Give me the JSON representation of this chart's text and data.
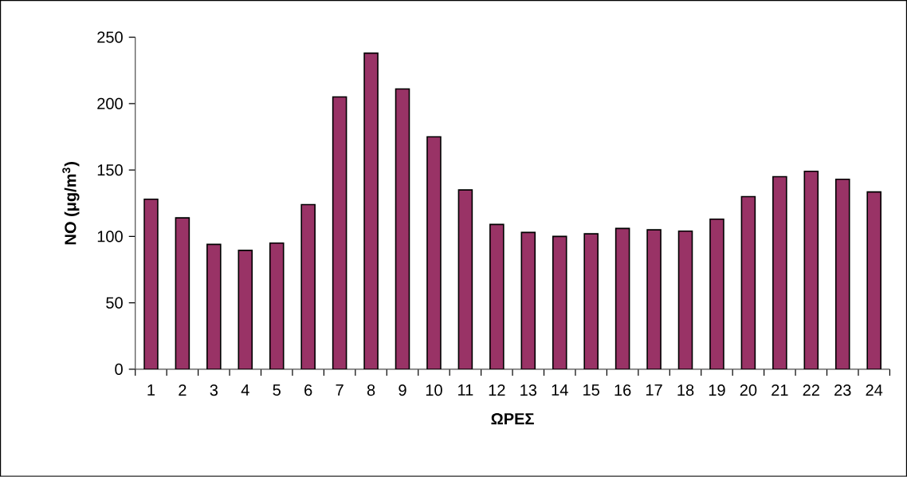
{
  "chart_data": {
    "type": "bar",
    "xlabel": "ΩΡΕΣ",
    "ylabel": "NO (μg/m$^{3}$)",
    "categories": [
      "1",
      "2",
      "3",
      "4",
      "5",
      "6",
      "7",
      "8",
      "9",
      "10",
      "11",
      "12",
      "13",
      "14",
      "15",
      "16",
      "17",
      "18",
      "19",
      "20",
      "21",
      "22",
      "23",
      "24"
    ],
    "values": [
      128,
      114,
      94,
      89.5,
      95,
      124,
      205,
      238,
      211,
      175,
      135,
      109,
      103,
      100,
      102,
      106,
      105,
      104,
      113,
      130,
      145,
      149,
      143,
      133.5
    ],
    "color": "#993366",
    "ylim": [
      0,
      250
    ],
    "yticks": [
      0,
      50,
      100,
      150,
      200,
      250
    ],
    "grid": false
  }
}
